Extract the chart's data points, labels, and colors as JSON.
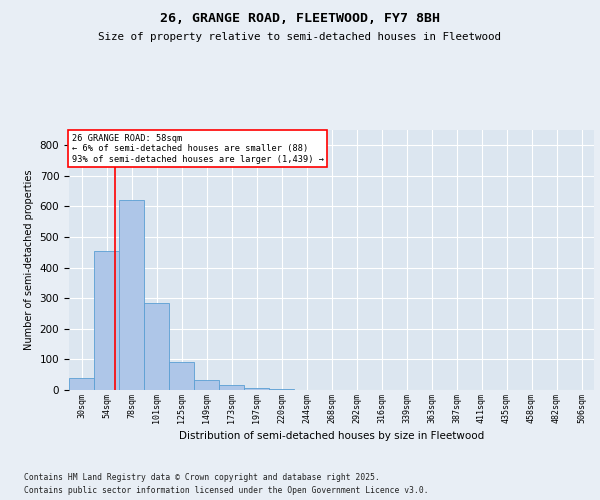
{
  "title1": "26, GRANGE ROAD, FLEETWOOD, FY7 8BH",
  "title2": "Size of property relative to semi-detached houses in Fleetwood",
  "xlabel": "Distribution of semi-detached houses by size in Fleetwood",
  "ylabel": "Number of semi-detached properties",
  "categories": [
    "30sqm",
    "54sqm",
    "78sqm",
    "101sqm",
    "125sqm",
    "149sqm",
    "173sqm",
    "197sqm",
    "220sqm",
    "244sqm",
    "268sqm",
    "292sqm",
    "316sqm",
    "339sqm",
    "363sqm",
    "387sqm",
    "411sqm",
    "435sqm",
    "458sqm",
    "482sqm",
    "506sqm"
  ],
  "values": [
    40,
    455,
    620,
    285,
    90,
    32,
    15,
    8,
    2,
    0,
    0,
    0,
    0,
    0,
    0,
    0,
    0,
    0,
    0,
    0,
    0
  ],
  "bar_color": "#aec6e8",
  "bar_edge_color": "#5a9fd4",
  "red_line_x": 1.35,
  "annotation_title": "26 GRANGE ROAD: 58sqm",
  "annotation_line1": "← 6% of semi-detached houses are smaller (88)",
  "annotation_line2": "93% of semi-detached houses are larger (1,439) →",
  "footer1": "Contains HM Land Registry data © Crown copyright and database right 2025.",
  "footer2": "Contains public sector information licensed under the Open Government Licence v3.0.",
  "ylim": [
    0,
    850
  ],
  "background_color": "#e8eef5",
  "plot_background": "#dce6f0"
}
